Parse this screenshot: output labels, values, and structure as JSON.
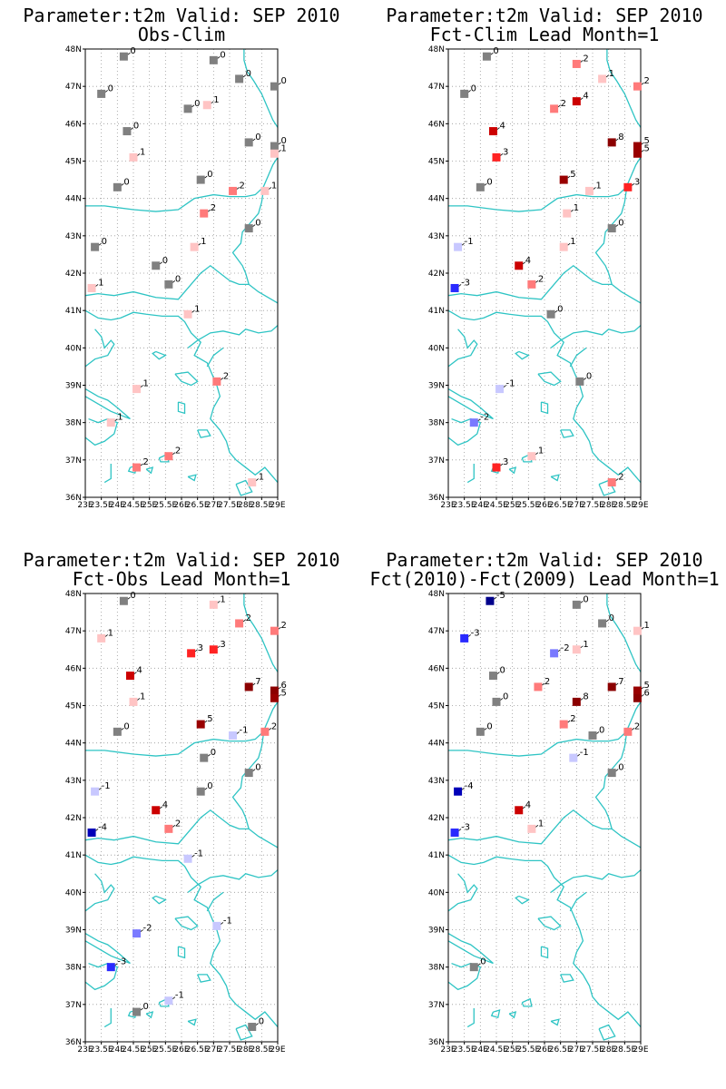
{
  "map": {
    "lon_range": [
      23,
      29
    ],
    "lat_range": [
      36,
      48
    ],
    "lon_tick_labels": [
      "23E",
      "23.5E",
      "24E",
      "24.5E",
      "25E",
      "25.5E",
      "26E",
      "26.5E",
      "27E",
      "27.5E",
      "28E",
      "28.5E",
      "29E"
    ],
    "lon_tick_values": [
      23,
      23.5,
      24,
      24.5,
      25,
      25.5,
      26,
      26.5,
      27,
      27.5,
      28,
      28.5,
      29
    ],
    "lat_tick_labels": [
      "36N",
      "37N",
      "38N",
      "39N",
      "40N",
      "41N",
      "42N",
      "43N",
      "44N",
      "45N",
      "46N",
      "47N",
      "48N"
    ],
    "lat_tick_values": [
      36,
      37,
      38,
      39,
      40,
      41,
      42,
      43,
      44,
      45,
      46,
      47,
      48
    ],
    "grid": true,
    "coastline_color": "#2ec4c4",
    "station_colors": {
      "-5": "#00008b",
      "-4": "#0000b8",
      "-3": "#2a2aff",
      "-2": "#7a7aff",
      "-1": "#c8c8ff",
      "0": "#808080",
      "1": "#ffc4c4",
      "2": "#ff7a7a",
      "3": "#ff2222",
      "4": "#cc0000",
      "5": "#990000",
      "7": "#8b0000",
      "8": "#8b0000"
    }
  },
  "panels": [
    {
      "title_line1": "Parameter:t2m Valid: SEP 2010",
      "title_line2": "Obs-Clim",
      "stations": [
        {
          "lon": 24.2,
          "lat": 47.8,
          "value": 0,
          "label": "0"
        },
        {
          "lon": 27.0,
          "lat": 47.7,
          "value": 0,
          "label": "0"
        },
        {
          "lon": 23.5,
          "lat": 46.8,
          "value": 0,
          "label": "0"
        },
        {
          "lon": 27.8,
          "lat": 47.2,
          "value": 0,
          "label": "0"
        },
        {
          "lon": 28.9,
          "lat": 47.0,
          "value": 0,
          "label": "0"
        },
        {
          "lon": 26.2,
          "lat": 46.4,
          "value": 0,
          "label": "0"
        },
        {
          "lon": 26.8,
          "lat": 46.5,
          "value": 1,
          "label": "1"
        },
        {
          "lon": 24.3,
          "lat": 45.8,
          "value": 0,
          "label": "0"
        },
        {
          "lon": 28.1,
          "lat": 45.5,
          "value": 0,
          "label": "0"
        },
        {
          "lon": 24.5,
          "lat": 45.1,
          "value": 1,
          "label": "1"
        },
        {
          "lon": 28.9,
          "lat": 45.4,
          "value": 0,
          "label": "0"
        },
        {
          "lon": 28.9,
          "lat": 45.2,
          "value": 1,
          "label": "1"
        },
        {
          "lon": 24.0,
          "lat": 44.3,
          "value": 0,
          "label": "0"
        },
        {
          "lon": 26.6,
          "lat": 44.5,
          "value": 0,
          "label": "0"
        },
        {
          "lon": 27.6,
          "lat": 44.2,
          "value": 2,
          "label": "2"
        },
        {
          "lon": 28.6,
          "lat": 44.2,
          "value": 1,
          "label": "1"
        },
        {
          "lon": 26.7,
          "lat": 43.6,
          "value": 2,
          "label": "2"
        },
        {
          "lon": 28.1,
          "lat": 43.2,
          "value": 0,
          "label": "0"
        },
        {
          "lon": 23.3,
          "lat": 42.7,
          "value": 0,
          "label": "0"
        },
        {
          "lon": 26.4,
          "lat": 42.7,
          "value": 1,
          "label": "1"
        },
        {
          "lon": 25.2,
          "lat": 42.2,
          "value": 0,
          "label": "0"
        },
        {
          "lon": 25.6,
          "lat": 41.7,
          "value": 0,
          "label": "0"
        },
        {
          "lon": 23.2,
          "lat": 41.6,
          "value": 1,
          "label": "1"
        },
        {
          "lon": 26.2,
          "lat": 40.9,
          "value": 1,
          "label": "1"
        },
        {
          "lon": 27.1,
          "lat": 39.1,
          "value": 2,
          "label": "2"
        },
        {
          "lon": 24.6,
          "lat": 38.9,
          "value": 1,
          "label": "1"
        },
        {
          "lon": 23.8,
          "lat": 38.0,
          "value": 1,
          "label": "1"
        },
        {
          "lon": 25.6,
          "lat": 37.1,
          "value": 2,
          "label": "2"
        },
        {
          "lon": 24.6,
          "lat": 36.8,
          "value": 2,
          "label": "2"
        },
        {
          "lon": 28.2,
          "lat": 36.4,
          "value": 1,
          "label": "1"
        }
      ]
    },
    {
      "title_line1": "Parameter:t2m Valid: SEP 2010",
      "title_line2": "Fct-Clim Lead Month=1",
      "stations": [
        {
          "lon": 24.2,
          "lat": 47.8,
          "value": 0,
          "label": "0"
        },
        {
          "lon": 27.0,
          "lat": 47.6,
          "value": 2,
          "label": "2"
        },
        {
          "lon": 23.5,
          "lat": 46.8,
          "value": 0,
          "label": "0"
        },
        {
          "lon": 27.8,
          "lat": 47.2,
          "value": 1,
          "label": "1"
        },
        {
          "lon": 28.9,
          "lat": 47.0,
          "value": 2,
          "label": "2"
        },
        {
          "lon": 26.3,
          "lat": 46.4,
          "value": 2,
          "label": "2"
        },
        {
          "lon": 27.0,
          "lat": 46.6,
          "value": 4,
          "label": "4"
        },
        {
          "lon": 24.4,
          "lat": 45.8,
          "value": 4,
          "label": "4"
        },
        {
          "lon": 28.1,
          "lat": 45.5,
          "value": 8,
          "label": "8"
        },
        {
          "lon": 24.5,
          "lat": 45.1,
          "value": 3,
          "label": "3"
        },
        {
          "lon": 28.9,
          "lat": 45.4,
          "value": 5,
          "label": "5"
        },
        {
          "lon": 28.9,
          "lat": 45.2,
          "value": 5,
          "label": "5"
        },
        {
          "lon": 24.0,
          "lat": 44.3,
          "value": 0,
          "label": "0"
        },
        {
          "lon": 26.6,
          "lat": 44.5,
          "value": 5,
          "label": "5"
        },
        {
          "lon": 27.4,
          "lat": 44.2,
          "value": 1,
          "label": "1"
        },
        {
          "lon": 28.6,
          "lat": 44.3,
          "value": 3,
          "label": "3"
        },
        {
          "lon": 26.7,
          "lat": 43.6,
          "value": 1,
          "label": "1"
        },
        {
          "lon": 28.1,
          "lat": 43.2,
          "value": 0,
          "label": "0"
        },
        {
          "lon": 23.3,
          "lat": 42.7,
          "value": -1,
          "label": "-1"
        },
        {
          "lon": 26.6,
          "lat": 42.7,
          "value": 1,
          "label": "1"
        },
        {
          "lon": 25.2,
          "lat": 42.2,
          "value": 4,
          "label": "4"
        },
        {
          "lon": 25.6,
          "lat": 41.7,
          "value": 2,
          "label": "2"
        },
        {
          "lon": 23.2,
          "lat": 41.6,
          "value": -3,
          "label": "-3"
        },
        {
          "lon": 26.2,
          "lat": 40.9,
          "value": 0,
          "label": "0"
        },
        {
          "lon": 27.1,
          "lat": 39.1,
          "value": 0,
          "label": "0"
        },
        {
          "lon": 24.6,
          "lat": 38.9,
          "value": -1,
          "label": "-1"
        },
        {
          "lon": 23.8,
          "lat": 38.0,
          "value": -2,
          "label": "-2"
        },
        {
          "lon": 25.6,
          "lat": 37.1,
          "value": 1,
          "label": "1"
        },
        {
          "lon": 24.5,
          "lat": 36.8,
          "value": 3,
          "label": "3"
        },
        {
          "lon": 28.1,
          "lat": 36.4,
          "value": 2,
          "label": "2"
        }
      ]
    },
    {
      "title_line1": "Parameter:t2m Valid: SEP 2010",
      "title_line2": "Fct-Obs Lead Month=1",
      "stations": [
        {
          "lon": 24.2,
          "lat": 47.8,
          "value": 0,
          "label": "0"
        },
        {
          "lon": 27.0,
          "lat": 47.7,
          "value": 1,
          "label": "1"
        },
        {
          "lon": 23.5,
          "lat": 46.8,
          "value": 1,
          "label": "1"
        },
        {
          "lon": 27.8,
          "lat": 47.2,
          "value": 2,
          "label": "2"
        },
        {
          "lon": 28.9,
          "lat": 47.0,
          "value": 2,
          "label": "2"
        },
        {
          "lon": 26.3,
          "lat": 46.4,
          "value": 3,
          "label": "3"
        },
        {
          "lon": 27.0,
          "lat": 46.5,
          "value": 3,
          "label": "3"
        },
        {
          "lon": 24.4,
          "lat": 45.8,
          "value": 4,
          "label": "4"
        },
        {
          "lon": 28.1,
          "lat": 45.5,
          "value": 7,
          "label": "7"
        },
        {
          "lon": 24.5,
          "lat": 45.1,
          "value": 1,
          "label": "1"
        },
        {
          "lon": 28.9,
          "lat": 45.4,
          "value": 6,
          "label": "6"
        },
        {
          "lon": 28.9,
          "lat": 45.2,
          "value": 5,
          "label": "5"
        },
        {
          "lon": 24.0,
          "lat": 44.3,
          "value": 0,
          "label": "0"
        },
        {
          "lon": 26.6,
          "lat": 44.5,
          "value": 5,
          "label": "5"
        },
        {
          "lon": 27.6,
          "lat": 44.2,
          "value": -1,
          "label": "-1"
        },
        {
          "lon": 28.6,
          "lat": 44.3,
          "value": 2,
          "label": "2"
        },
        {
          "lon": 26.7,
          "lat": 43.6,
          "value": 0,
          "label": "0"
        },
        {
          "lon": 28.1,
          "lat": 43.2,
          "value": 0,
          "label": "0"
        },
        {
          "lon": 23.3,
          "lat": 42.7,
          "value": -1,
          "label": "-1"
        },
        {
          "lon": 26.6,
          "lat": 42.7,
          "value": 0,
          "label": "0"
        },
        {
          "lon": 25.2,
          "lat": 42.2,
          "value": 4,
          "label": "4"
        },
        {
          "lon": 25.6,
          "lat": 41.7,
          "value": 2,
          "label": "2"
        },
        {
          "lon": 23.2,
          "lat": 41.6,
          "value": -4,
          "label": "-4"
        },
        {
          "lon": 26.2,
          "lat": 40.9,
          "value": -1,
          "label": "-1"
        },
        {
          "lon": 27.1,
          "lat": 39.1,
          "value": -1,
          "label": "-1"
        },
        {
          "lon": 24.6,
          "lat": 38.9,
          "value": -2,
          "label": "-2"
        },
        {
          "lon": 23.8,
          "lat": 38.0,
          "value": -3,
          "label": "-3"
        },
        {
          "lon": 25.6,
          "lat": 37.1,
          "value": -1,
          "label": "-1"
        },
        {
          "lon": 24.6,
          "lat": 36.8,
          "value": 0,
          "label": "0"
        },
        {
          "lon": 28.2,
          "lat": 36.4,
          "value": 0,
          "label": "0"
        }
      ]
    },
    {
      "title_line1": "Parameter:t2m Valid: SEP 2010",
      "title_line2": "Fct(2010)-Fct(2009) Lead Month=1",
      "stations": [
        {
          "lon": 24.3,
          "lat": 47.8,
          "value": -5,
          "label": "-5"
        },
        {
          "lon": 27.0,
          "lat": 47.7,
          "value": 0,
          "label": "0"
        },
        {
          "lon": 23.5,
          "lat": 46.8,
          "value": -3,
          "label": "-3"
        },
        {
          "lon": 27.8,
          "lat": 47.2,
          "value": 0,
          "label": "0"
        },
        {
          "lon": 28.9,
          "lat": 47.0,
          "value": 1,
          "label": "1"
        },
        {
          "lon": 26.3,
          "lat": 46.4,
          "value": -2,
          "label": "-2"
        },
        {
          "lon": 27.0,
          "lat": 46.5,
          "value": 1,
          "label": "1"
        },
        {
          "lon": 24.4,
          "lat": 45.8,
          "value": 0,
          "label": "0"
        },
        {
          "lon": 28.1,
          "lat": 45.5,
          "value": 7,
          "label": "7"
        },
        {
          "lon": 24.5,
          "lat": 45.1,
          "value": 0,
          "label": "0"
        },
        {
          "lon": 25.8,
          "lat": 45.5,
          "value": 2,
          "label": "2"
        },
        {
          "lon": 27.0,
          "lat": 45.1,
          "value": 8,
          "label": "8"
        },
        {
          "lon": 28.9,
          "lat": 45.4,
          "value": 5,
          "label": "5"
        },
        {
          "lon": 28.9,
          "lat": 45.2,
          "value": 6,
          "label": "6"
        },
        {
          "lon": 24.0,
          "lat": 44.3,
          "value": 0,
          "label": "0"
        },
        {
          "lon": 26.6,
          "lat": 44.5,
          "value": 2,
          "label": "2"
        },
        {
          "lon": 27.5,
          "lat": 44.2,
          "value": 0,
          "label": "0"
        },
        {
          "lon": 28.6,
          "lat": 44.3,
          "value": 2,
          "label": "2"
        },
        {
          "lon": 26.9,
          "lat": 43.6,
          "value": -1,
          "label": "-1"
        },
        {
          "lon": 28.1,
          "lat": 43.2,
          "value": 0,
          "label": "0"
        },
        {
          "lon": 23.3,
          "lat": 42.7,
          "value": -4,
          "label": "-4"
        },
        {
          "lon": 25.2,
          "lat": 42.2,
          "value": 4,
          "label": "4"
        },
        {
          "lon": 25.6,
          "lat": 41.7,
          "value": 1,
          "label": "1"
        },
        {
          "lon": 23.2,
          "lat": 41.6,
          "value": -3,
          "label": "-3"
        },
        {
          "lon": 23.8,
          "lat": 38.0,
          "value": 0,
          "label": "0"
        }
      ]
    }
  ]
}
